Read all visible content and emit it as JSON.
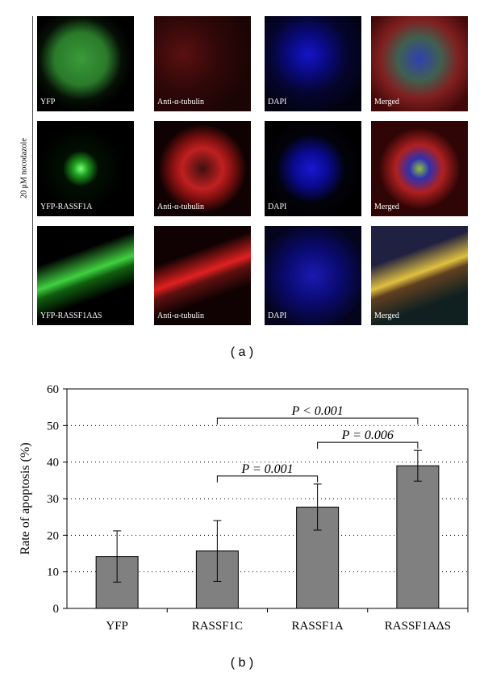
{
  "panel_a": {
    "side_label": "20 μM nocodazole",
    "rows": [
      [
        "YFP",
        "Anti-α-tubulin",
        "DAPI",
        "Merged"
      ],
      [
        "YFP-RASSF1A",
        "Anti-α-tubulin",
        "DAPI",
        "Merged"
      ],
      [
        "YFP-RASSF1AΔS",
        "Anti-α-tubulin",
        "DAPI",
        "Merged"
      ]
    ],
    "caption": "( a )"
  },
  "chart_data": {
    "type": "bar",
    "ylabel": "Rate of apoptosis (%)",
    "categories": [
      "YFP",
      "RASSF1C",
      "RASSF1A",
      "RASSF1AΔS"
    ],
    "values": [
      14.2,
      15.7,
      27.7,
      39
    ],
    "errors": [
      7,
      8.3,
      6.3,
      4.2
    ],
    "color": "#808080",
    "ylim": [
      0,
      60
    ],
    "yticks": [
      0,
      10,
      20,
      30,
      40,
      50,
      60
    ],
    "grid": true,
    "annotations": [
      {
        "text": "P = 0.001",
        "from": 1,
        "to": 2
      },
      {
        "text": "P = 0.006",
        "from": 2,
        "to": 3
      },
      {
        "text": "P < 0.001",
        "from": 1,
        "to": 3
      }
    ]
  },
  "panel_b": {
    "caption": "( b )"
  }
}
